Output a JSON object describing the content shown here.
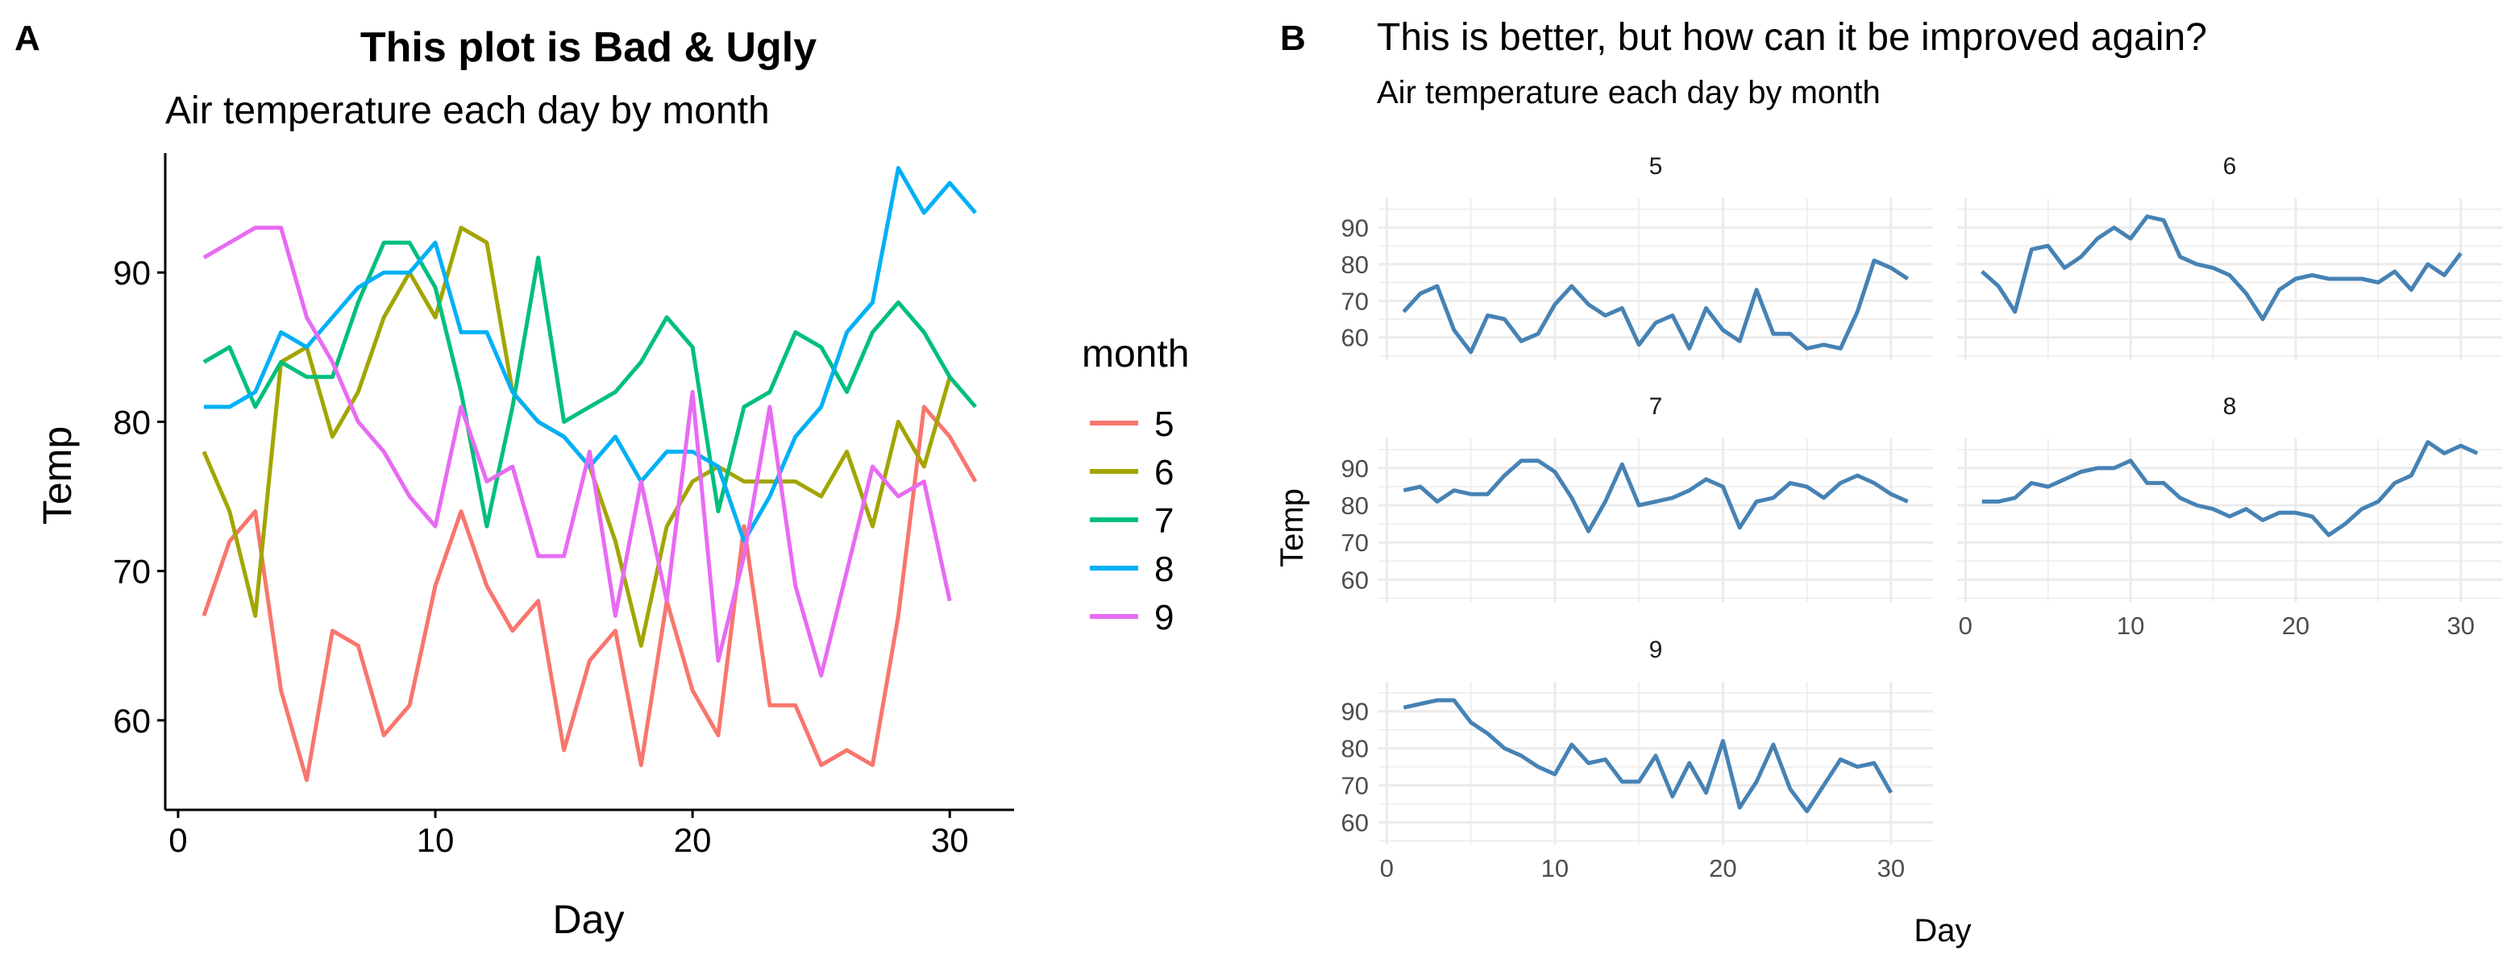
{
  "panels": {
    "a_tag": "A",
    "b_tag": "B"
  },
  "palette": {
    "5": "#F8766D",
    "6": "#A3A500",
    "7": "#00BF7D",
    "8": "#00B0F6",
    "9": "#E76BF3",
    "facet_line": "#4682B4",
    "grid": "#EBEBEB",
    "axis": "#000000",
    "facet_tick_text": "#4D4D4D"
  },
  "chart_data": [
    {
      "type": "line",
      "title": "This plot is Bad & Ugly",
      "subtitle": "Air temperature each day by month",
      "xlabel": "Day",
      "ylabel": "Temp",
      "xlim": [
        -0.5,
        32.5
      ],
      "ylim": [
        54,
        98
      ],
      "xticks": [
        0,
        10,
        20,
        30
      ],
      "yticks": [
        60,
        70,
        80,
        90
      ],
      "grid": false,
      "legend": {
        "title": "month",
        "position": "right",
        "entries": [
          "5",
          "6",
          "7",
          "8",
          "9"
        ]
      },
      "series": [
        {
          "name": "5",
          "x": [
            1,
            2,
            3,
            4,
            5,
            6,
            7,
            8,
            9,
            10,
            11,
            12,
            13,
            14,
            15,
            16,
            17,
            18,
            19,
            20,
            21,
            22,
            23,
            24,
            25,
            26,
            27,
            28,
            29,
            30,
            31
          ],
          "values": [
            67,
            72,
            74,
            62,
            56,
            66,
            65,
            59,
            61,
            69,
            74,
            69,
            66,
            68,
            58,
            64,
            66,
            57,
            68,
            62,
            59,
            73,
            61,
            61,
            57,
            58,
            57,
            67,
            81,
            79,
            76
          ]
        },
        {
          "name": "6",
          "x": [
            1,
            2,
            3,
            4,
            5,
            6,
            7,
            8,
            9,
            10,
            11,
            12,
            13,
            14,
            15,
            16,
            17,
            18,
            19,
            20,
            21,
            22,
            23,
            24,
            25,
            26,
            27,
            28,
            29,
            30
          ],
          "values": [
            78,
            74,
            67,
            84,
            85,
            79,
            82,
            87,
            90,
            87,
            93,
            92,
            82,
            80,
            79,
            77,
            72,
            65,
            73,
            76,
            77,
            76,
            76,
            76,
            75,
            78,
            73,
            80,
            77,
            83
          ]
        },
        {
          "name": "7",
          "x": [
            1,
            2,
            3,
            4,
            5,
            6,
            7,
            8,
            9,
            10,
            11,
            12,
            13,
            14,
            15,
            16,
            17,
            18,
            19,
            20,
            21,
            22,
            23,
            24,
            25,
            26,
            27,
            28,
            29,
            30,
            31
          ],
          "values": [
            84,
            85,
            81,
            84,
            83,
            83,
            88,
            92,
            92,
            89,
            82,
            73,
            81,
            91,
            80,
            81,
            82,
            84,
            87,
            85,
            74,
            81,
            82,
            86,
            85,
            82,
            86,
            88,
            86,
            83,
            81
          ]
        },
        {
          "name": "8",
          "x": [
            1,
            2,
            3,
            4,
            5,
            6,
            7,
            8,
            9,
            10,
            11,
            12,
            13,
            14,
            15,
            16,
            17,
            18,
            19,
            20,
            21,
            22,
            23,
            24,
            25,
            26,
            27,
            28,
            29,
            30,
            31
          ],
          "values": [
            81,
            81,
            82,
            86,
            85,
            87,
            89,
            90,
            90,
            92,
            86,
            86,
            82,
            80,
            79,
            77,
            79,
            76,
            78,
            78,
            77,
            72,
            75,
            79,
            81,
            86,
            88,
            97,
            94,
            96,
            94
          ]
        },
        {
          "name": "9",
          "x": [
            1,
            2,
            3,
            4,
            5,
            6,
            7,
            8,
            9,
            10,
            11,
            12,
            13,
            14,
            15,
            16,
            17,
            18,
            19,
            20,
            21,
            22,
            23,
            24,
            25,
            26,
            27,
            28,
            29,
            30
          ],
          "values": [
            91,
            92,
            93,
            93,
            87,
            84,
            80,
            78,
            75,
            73,
            81,
            76,
            77,
            71,
            71,
            78,
            67,
            76,
            68,
            82,
            64,
            71,
            81,
            69,
            63,
            70,
            77,
            75,
            76,
            68
          ]
        }
      ]
    },
    {
      "type": "line",
      "title": "This is better, but how can it be improved again?",
      "subtitle": "Air temperature each day by month",
      "xlabel": "Day",
      "ylabel": "Temp",
      "facet": "month",
      "xlim": [
        -0.5,
        32.5
      ],
      "ylim": [
        54,
        98
      ],
      "xticks": [
        0,
        10,
        20,
        30
      ],
      "yticks": [
        60,
        70,
        80,
        90
      ],
      "grid": true,
      "facets": [
        "5",
        "6",
        "7",
        "8",
        "9"
      ]
    }
  ]
}
